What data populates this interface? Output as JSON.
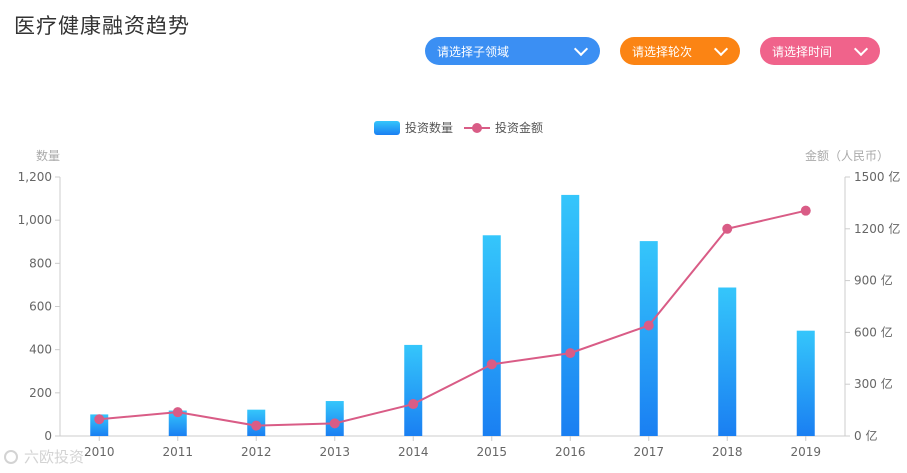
{
  "header": {
    "title": "医疗健康融资趋势"
  },
  "filters": {
    "domain": {
      "label": "请选择子领域",
      "color": "#3b8ff3"
    },
    "round": {
      "label": "请选择轮次",
      "color": "#fb8414"
    },
    "time": {
      "label": "请选择时间",
      "color": "#f0638b"
    }
  },
  "watermark": {
    "text": "六欧投资"
  },
  "chart_data": {
    "type": "bar",
    "categories": [
      "2010",
      "2011",
      "2012",
      "2013",
      "2014",
      "2015",
      "2016",
      "2017",
      "2018",
      "2019"
    ],
    "series": [
      {
        "name": "投资数量",
        "type": "bar",
        "axis": "left",
        "color": "#2d9cf6",
        "values": [
          100,
          118,
          122,
          162,
          422,
          930,
          1117,
          903,
          688,
          488
        ]
      },
      {
        "name": "投资金额",
        "type": "line",
        "axis": "right",
        "color": "#d95c86",
        "values": [
          97,
          138,
          60,
          73,
          185,
          415,
          480,
          640,
          1200,
          1305
        ]
      }
    ],
    "y_left": {
      "label": "数量",
      "ylim": [
        0,
        1200
      ],
      "ticks": [
        "0",
        "200",
        "400",
        "600",
        "800",
        "1,000",
        "1,200"
      ]
    },
    "y_right": {
      "label": "金额（人民币）",
      "ylim": [
        0,
        1500
      ],
      "ticks": [
        "0 亿",
        "300 亿",
        "600 亿",
        "900 亿",
        "1200 亿",
        "1500 亿"
      ]
    },
    "legend": {
      "position": "top-center"
    }
  }
}
